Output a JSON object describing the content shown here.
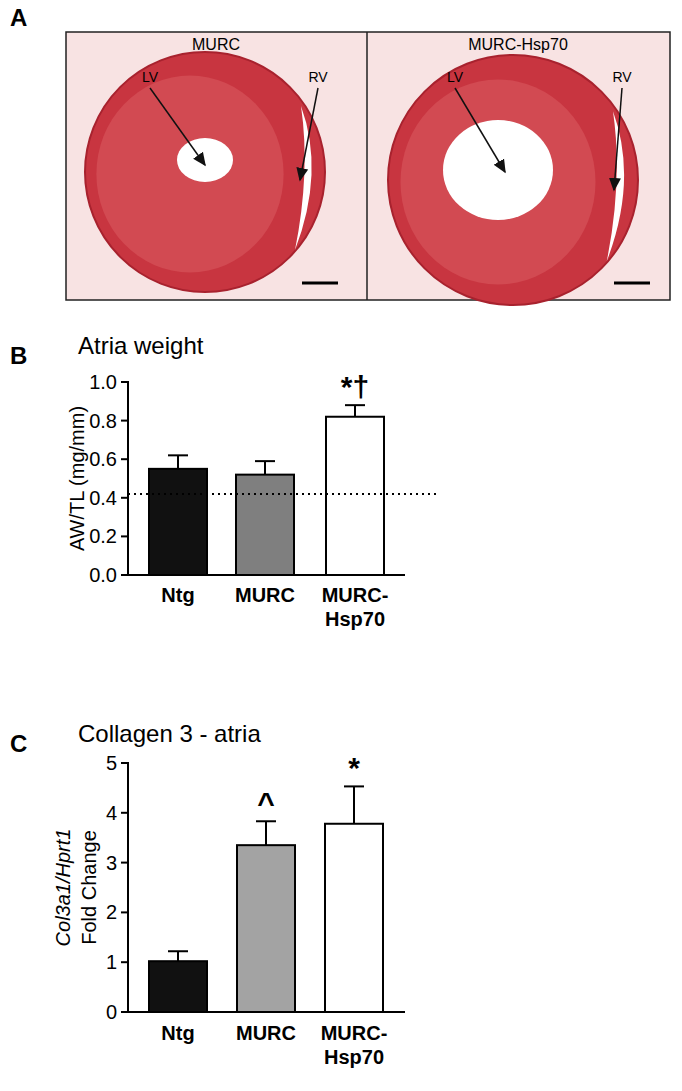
{
  "panel_a": {
    "label": "A",
    "images": [
      {
        "title": "MURC",
        "labels": [
          "LV",
          "RV"
        ]
      },
      {
        "title": "MURC-Hsp70",
        "labels": [
          "LV",
          "RV"
        ]
      }
    ]
  },
  "chart_data": [
    {
      "type": "bar",
      "panel_label": "B",
      "title": "Atria weight",
      "y_label": "AW/TL (mg/mm)",
      "categories": [
        "Ntg",
        "MURC",
        "MURC-Hsp70"
      ],
      "values": [
        0.55,
        0.52,
        0.82
      ],
      "errors": [
        0.07,
        0.07,
        0.06
      ],
      "colors": [
        "#111111",
        "#7f7f7f",
        "#ffffff"
      ],
      "significance": [
        null,
        null,
        "*†"
      ],
      "reference_line": 0.42,
      "ylim": [
        0,
        1.0
      ],
      "yticks": [
        {
          "value": 0,
          "label": "0.0"
        },
        0.2,
        0.4,
        0.6,
        0.8,
        {
          "value": 1.0,
          "label": "1.0"
        }
      ]
    },
    {
      "type": "bar",
      "panel_label": "C",
      "title": "Collagen 3 - atria",
      "y_label": "Col3a1/Hprt1 Fold Change",
      "categories": [
        "Ntg",
        "MURC",
        "MURC-Hsp70"
      ],
      "values": [
        1.02,
        3.35,
        3.78
      ],
      "errors": [
        0.2,
        0.48,
        0.75
      ],
      "colors": [
        "#111111",
        "#a3a3a3",
        "#ffffff"
      ],
      "significance": [
        null,
        "^",
        "*"
      ],
      "ylim": [
        0,
        5
      ],
      "yticks": [
        0,
        1,
        2,
        3,
        4,
        5
      ]
    }
  ]
}
